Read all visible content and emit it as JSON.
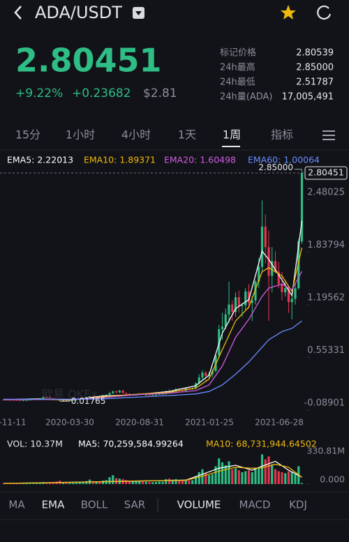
{
  "header": {
    "title": "ADA/USDT"
  },
  "price": {
    "last": "2.80451",
    "change_pct": "+9.22%",
    "change": "+0.23682",
    "usd": "$2.81"
  },
  "stats": [
    {
      "label": "标记价格",
      "value": "2.80539"
    },
    {
      "label": "24h最高",
      "value": "2.85000"
    },
    {
      "label": "24h最低",
      "value": "2.51787"
    },
    {
      "label": "24h量(ADA)",
      "value": "17,005,491"
    }
  ],
  "tabs": [
    "15分",
    "1小时",
    "4小时",
    "1天",
    "1周",
    "指标"
  ],
  "indicator_tabs": {
    "main": [
      "MA",
      "EMA",
      "BOLL",
      "SAR"
    ],
    "sub": [
      "VOLUME",
      "MACD",
      "KDJ"
    ]
  },
  "chart_data": [
    {
      "type": "candlestick",
      "up_color": "#2ebd85",
      "down_color": "#e4364f",
      "watermark": "欧易 OKEx",
      "ylim": [
        -0.19,
        3.0
      ],
      "yticks": [
        {
          "value": 2.48025,
          "label": "2.48025"
        },
        {
          "value": 1.83794,
          "label": "1.83794"
        },
        {
          "value": 1.19562,
          "label": "1.19562"
        },
        {
          "value": 0.55331,
          "label": "0.55331"
        },
        {
          "value": -0.08901,
          "label": "-0.08901"
        }
      ],
      "xtick_labels": [
        "-11-11",
        "2020-03-30",
        "2020-08-31",
        "2021-01-25",
        "2021-06-28"
      ],
      "last_price": 2.80451,
      "high_marker": {
        "value": 2.85,
        "label": "2.85000"
      },
      "low_marker": {
        "value": 0.01765,
        "label": "0.01765"
      },
      "ohlc": [
        [
          0.042,
          0.044,
          0.038,
          0.04
        ],
        [
          0.04,
          0.042,
          0.037,
          0.038
        ],
        [
          0.038,
          0.04,
          0.036,
          0.037
        ],
        [
          0.037,
          0.039,
          0.035,
          0.036
        ],
        [
          0.036,
          0.038,
          0.033,
          0.034
        ],
        [
          0.034,
          0.037,
          0.032,
          0.033
        ],
        [
          0.033,
          0.035,
          0.031,
          0.033
        ],
        [
          0.033,
          0.036,
          0.032,
          0.035
        ],
        [
          0.035,
          0.04,
          0.034,
          0.039
        ],
        [
          0.039,
          0.046,
          0.038,
          0.044
        ],
        [
          0.044,
          0.054,
          0.043,
          0.052
        ],
        [
          0.052,
          0.06,
          0.05,
          0.057
        ],
        [
          0.057,
          0.076,
          0.055,
          0.072
        ],
        [
          0.072,
          0.08,
          0.064,
          0.068
        ],
        [
          0.068,
          0.07,
          0.055,
          0.058
        ],
        [
          0.058,
          0.06,
          0.046,
          0.05
        ],
        [
          0.05,
          0.053,
          0.036,
          0.04
        ],
        [
          0.04,
          0.042,
          0.01765,
          0.028
        ],
        [
          0.028,
          0.033,
          0.025,
          0.031
        ],
        [
          0.031,
          0.034,
          0.027,
          0.03
        ],
        [
          0.03,
          0.036,
          0.029,
          0.034
        ],
        [
          0.034,
          0.04,
          0.032,
          0.038
        ],
        [
          0.038,
          0.044,
          0.036,
          0.042
        ],
        [
          0.042,
          0.052,
          0.041,
          0.05
        ],
        [
          0.05,
          0.055,
          0.047,
          0.053
        ],
        [
          0.053,
          0.072,
          0.052,
          0.07
        ],
        [
          0.07,
          0.084,
          0.068,
          0.08
        ],
        [
          0.08,
          0.086,
          0.073,
          0.077
        ],
        [
          0.077,
          0.085,
          0.074,
          0.083
        ],
        [
          0.083,
          0.09,
          0.078,
          0.081
        ],
        [
          0.081,
          0.096,
          0.08,
          0.094
        ],
        [
          0.094,
          0.104,
          0.088,
          0.099
        ],
        [
          0.099,
          0.13,
          0.097,
          0.12
        ],
        [
          0.12,
          0.15,
          0.11,
          0.14
        ],
        [
          0.14,
          0.15,
          0.12,
          0.13
        ],
        [
          0.13,
          0.16,
          0.12,
          0.15
        ],
        [
          0.15,
          0.16,
          0.12,
          0.12
        ],
        [
          0.12,
          0.13,
          0.1,
          0.11
        ],
        [
          0.11,
          0.12,
          0.09,
          0.1
        ],
        [
          0.1,
          0.11,
          0.09,
          0.1
        ],
        [
          0.1,
          0.11,
          0.09,
          0.1
        ],
        [
          0.1,
          0.12,
          0.095,
          0.11
        ],
        [
          0.11,
          0.12,
          0.1,
          0.1
        ],
        [
          0.1,
          0.11,
          0.095,
          0.1
        ],
        [
          0.1,
          0.11,
          0.09,
          0.09
        ],
        [
          0.09,
          0.1,
          0.09,
          0.1
        ],
        [
          0.1,
          0.11,
          0.09,
          0.1
        ],
        [
          0.1,
          0.12,
          0.1,
          0.11
        ],
        [
          0.11,
          0.12,
          0.1,
          0.11
        ],
        [
          0.11,
          0.15,
          0.1,
          0.14
        ],
        [
          0.14,
          0.17,
          0.12,
          0.13
        ],
        [
          0.13,
          0.16,
          0.12,
          0.15
        ],
        [
          0.15,
          0.18,
          0.14,
          0.17
        ],
        [
          0.17,
          0.18,
          0.14,
          0.16
        ],
        [
          0.16,
          0.17,
          0.14,
          0.15
        ],
        [
          0.15,
          0.19,
          0.14,
          0.18
        ],
        [
          0.18,
          0.19,
          0.16,
          0.17
        ],
        [
          0.17,
          0.19,
          0.16,
          0.18
        ],
        [
          0.18,
          0.25,
          0.17,
          0.24
        ],
        [
          0.24,
          0.35,
          0.23,
          0.31
        ],
        [
          0.31,
          0.4,
          0.28,
          0.37
        ],
        [
          0.37,
          0.39,
          0.27,
          0.33
        ],
        [
          0.33,
          0.38,
          0.3,
          0.35
        ],
        [
          0.35,
          0.41,
          0.31,
          0.39
        ],
        [
          0.39,
          0.6,
          0.37,
          0.58
        ],
        [
          0.58,
          0.95,
          0.55,
          0.9
        ],
        [
          0.9,
          1.1,
          0.77,
          0.93
        ],
        [
          0.93,
          1.15,
          0.9,
          1.08
        ],
        [
          1.08,
          1.48,
          0.98,
          1.2
        ],
        [
          1.2,
          1.25,
          1.0,
          1.11
        ],
        [
          1.11,
          1.35,
          1.05,
          1.29
        ],
        [
          1.29,
          1.37,
          1.1,
          1.18
        ],
        [
          1.18,
          1.22,
          1.05,
          1.19
        ],
        [
          1.19,
          1.4,
          1.12,
          1.36
        ],
        [
          1.36,
          1.45,
          1.15,
          1.22
        ],
        [
          1.22,
          1.3,
          1.0,
          1.25
        ],
        [
          1.25,
          1.5,
          1.2,
          1.48
        ],
        [
          1.48,
          1.77,
          1.4,
          1.66
        ],
        [
          1.66,
          2.47,
          1.6,
          2.15
        ],
        [
          2.15,
          2.3,
          1.7,
          1.9
        ],
        [
          1.9,
          2.1,
          1.0,
          1.55
        ],
        [
          1.55,
          1.9,
          1.35,
          1.73
        ],
        [
          1.73,
          1.85,
          1.58,
          1.6
        ],
        [
          1.6,
          1.72,
          1.4,
          1.45
        ],
        [
          1.45,
          1.6,
          1.25,
          1.35
        ],
        [
          1.35,
          1.5,
          1.3,
          1.4
        ],
        [
          1.4,
          1.42,
          1.1,
          1.23
        ],
        [
          1.23,
          1.35,
          1.02,
          1.27
        ],
        [
          1.27,
          1.47,
          1.2,
          1.4
        ],
        [
          1.4,
          2.0,
          1.38,
          1.97
        ],
        [
          1.97,
          2.85,
          1.94,
          2.80451
        ]
      ],
      "series": [
        {
          "name": "EMA5: 2.22013",
          "color": "#ffffff",
          "x": [
            0,
            10,
            20,
            30,
            40,
            50,
            58,
            62,
            66,
            70,
            74,
            78,
            80,
            84,
            87,
            90
          ],
          "values": [
            0.04,
            0.05,
            0.035,
            0.085,
            0.1,
            0.14,
            0.21,
            0.34,
            0.85,
            1.15,
            1.26,
            1.85,
            1.75,
            1.5,
            1.31,
            2.22013
          ]
        },
        {
          "name": "EMA10: 1.89371",
          "color": "#f0b90b",
          "x": [
            0,
            10,
            20,
            30,
            40,
            50,
            58,
            62,
            66,
            70,
            74,
            78,
            80,
            84,
            87,
            90
          ],
          "values": [
            0.04,
            0.045,
            0.04,
            0.075,
            0.105,
            0.13,
            0.18,
            0.29,
            0.65,
            1.0,
            1.17,
            1.6,
            1.65,
            1.55,
            1.36,
            1.89371
          ]
        },
        {
          "name": "EMA20: 1.60498",
          "color": "#d05ce3",
          "x": [
            0,
            10,
            20,
            30,
            40,
            50,
            58,
            62,
            66,
            70,
            74,
            78,
            80,
            84,
            87,
            90
          ],
          "values": [
            0.04,
            0.042,
            0.045,
            0.065,
            0.1,
            0.12,
            0.15,
            0.22,
            0.45,
            0.8,
            1.02,
            1.3,
            1.4,
            1.45,
            1.38,
            1.60498
          ]
        },
        {
          "name": "EMA60: 1.00064",
          "color": "#6b8cff",
          "x": [
            0,
            10,
            20,
            30,
            40,
            50,
            58,
            62,
            66,
            70,
            74,
            78,
            80,
            84,
            87,
            90
          ],
          "values": [
            0.045,
            0.045,
            0.045,
            0.05,
            0.07,
            0.09,
            0.11,
            0.14,
            0.22,
            0.35,
            0.5,
            0.68,
            0.77,
            0.87,
            0.91,
            1.00064
          ]
        }
      ]
    },
    {
      "type": "volume",
      "label": "VOL: 10.37M",
      "ylim": [
        0,
        330.81
      ],
      "yticks": [
        {
          "value": 330.81,
          "label": "330.81M"
        },
        {
          "value": 0,
          "label": "0.000"
        }
      ],
      "values": [
        8,
        7,
        6,
        6,
        7,
        6,
        6,
        8,
        10,
        12,
        14,
        13,
        20,
        18,
        15,
        16,
        25,
        35,
        20,
        15,
        14,
        15,
        16,
        20,
        18,
        30,
        45,
        30,
        28,
        25,
        35,
        40,
        70,
        90,
        60,
        55,
        50,
        40,
        35,
        30,
        28,
        30,
        25,
        24,
        22,
        20,
        22,
        25,
        24,
        50,
        55,
        45,
        50,
        40,
        35,
        45,
        38,
        40,
        80,
        120,
        150,
        110,
        90,
        100,
        180,
        260,
        220,
        190,
        230,
        150,
        160,
        140,
        120,
        130,
        140,
        120,
        150,
        170,
        300,
        250,
        280,
        200,
        150,
        130,
        120,
        110,
        130,
        120,
        100,
        180,
        10.37
      ],
      "series": [
        {
          "name": "MA5: 70,259,584.99264",
          "color": "#ffffff",
          "x": [
            0,
            20,
            40,
            55,
            60,
            65,
            70,
            75,
            78,
            82,
            86,
            90
          ],
          "values": [
            7,
            18,
            30,
            40,
            100,
            160,
            190,
            140,
            180,
            230,
            140,
            70.26
          ]
        },
        {
          "name": "MA10: 68,731,944.64502",
          "color": "#f0b90b",
          "x": [
            0,
            20,
            40,
            55,
            60,
            65,
            70,
            75,
            78,
            82,
            86,
            90
          ],
          "values": [
            7,
            17,
            32,
            38,
            80,
            130,
            170,
            160,
            165,
            200,
            170,
            68.73
          ]
        }
      ]
    }
  ]
}
